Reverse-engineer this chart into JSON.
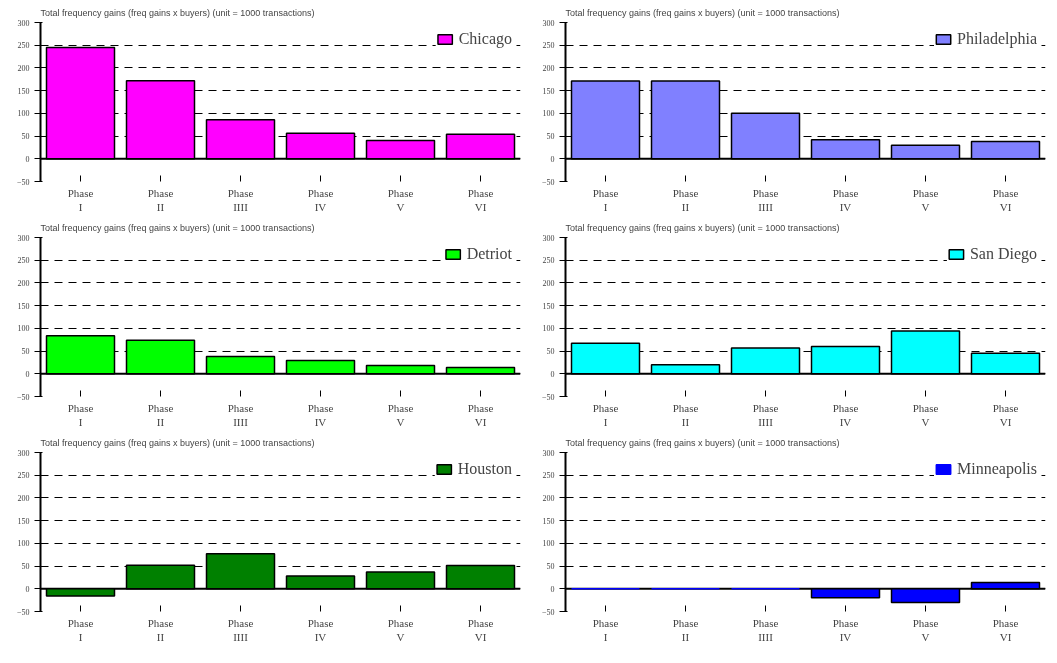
{
  "chart_data": [
    {
      "type": "bar",
      "title": "Total frequency gains (freq gains x buyers)  (unit = 1000 transactions)",
      "categories": [
        "Phase\nI",
        "Phase\nII",
        "Phase\nIIII",
        "Phase\nIV",
        "Phase\nV",
        "Phase\nVI"
      ],
      "series": [
        {
          "name": "Chicago",
          "color": "#ff00ff",
          "values": [
            245,
            172,
            86,
            56,
            40,
            54
          ]
        }
      ],
      "ylim": [
        -50,
        300
      ],
      "yticks": [
        -50,
        0,
        50,
        100,
        150,
        200,
        250,
        300
      ],
      "grid": "y",
      "legend": "top right"
    },
    {
      "type": "bar",
      "title": "Total frequency gains (freq gains x buyers)  (unit = 1000 transactions)",
      "categories": [
        "Phase\nI",
        "Phase\nII",
        "Phase\nIIII",
        "Phase\nIV",
        "Phase\nV",
        "Phase\nVI"
      ],
      "series": [
        {
          "name": "Philadelphia",
          "color": "#8080ff",
          "values": [
            171,
            171,
            100,
            42,
            30,
            38
          ]
        }
      ],
      "ylim": [
        -50,
        300
      ],
      "yticks": [
        -50,
        0,
        50,
        100,
        150,
        200,
        250,
        300
      ],
      "grid": "y",
      "legend": "top right"
    },
    {
      "type": "bar",
      "title": "Total frequency gains (freq gains x buyers)  (unit = 1000 transactions)",
      "categories": [
        "Phase\nI",
        "Phase\nII",
        "Phase\nIIII",
        "Phase\nIV",
        "Phase\nV",
        "Phase\nVI"
      ],
      "series": [
        {
          "name": "Detriot",
          "color": "#00ff00",
          "values": [
            84,
            74,
            38,
            29,
            18,
            14
          ]
        }
      ],
      "ylim": [
        -50,
        300
      ],
      "yticks": [
        -50,
        0,
        50,
        100,
        150,
        200,
        250,
        300
      ],
      "grid": "y",
      "legend": "top right"
    },
    {
      "type": "bar",
      "title": "Total frequency gains (freq gains x buyers)  (unit = 1000 transactions)",
      "categories": [
        "Phase\nI",
        "Phase\nII",
        "Phase\nIIII",
        "Phase\nIV",
        "Phase\nV",
        "Phase\nVI"
      ],
      "series": [
        {
          "name": "San Diego",
          "color": "#00ffff",
          "values": [
            67,
            20,
            57,
            60,
            94,
            45
          ]
        }
      ],
      "ylim": [
        -50,
        300
      ],
      "yticks": [
        -50,
        0,
        50,
        100,
        150,
        200,
        250,
        300
      ],
      "grid": "y",
      "legend": "top right"
    },
    {
      "type": "bar",
      "title": "Total frequency gains (freq gains x buyers)  (unit = 1000 transactions)",
      "categories": [
        "Phase\nI",
        "Phase\nII",
        "Phase\nIIII",
        "Phase\nIV",
        "Phase\nV",
        "Phase\nVI"
      ],
      "series": [
        {
          "name": "Houston",
          "color": "#008000",
          "values": [
            -16,
            52,
            77,
            28,
            37,
            51
          ]
        }
      ],
      "ylim": [
        -50,
        300
      ],
      "yticks": [
        -50,
        0,
        50,
        100,
        150,
        200,
        250,
        300
      ],
      "grid": "y",
      "legend": "top right"
    },
    {
      "type": "bar",
      "title": "Total frequency gains (freq gains x buyers)  (unit = 1000 transactions)",
      "categories": [
        "Phase\nI",
        "Phase\nII",
        "Phase\nIIII",
        "Phase\nIV",
        "Phase\nV",
        "Phase\nVI"
      ],
      "series": [
        {
          "name": "Minneapolis",
          "color": "#0000ff",
          "values": [
            0,
            0,
            0,
            -20,
            -30,
            14
          ]
        }
      ],
      "ylim": [
        -50,
        300
      ],
      "yticks": [
        -50,
        0,
        50,
        100,
        150,
        200,
        250,
        300
      ],
      "grid": "y",
      "legend": "top right"
    }
  ]
}
